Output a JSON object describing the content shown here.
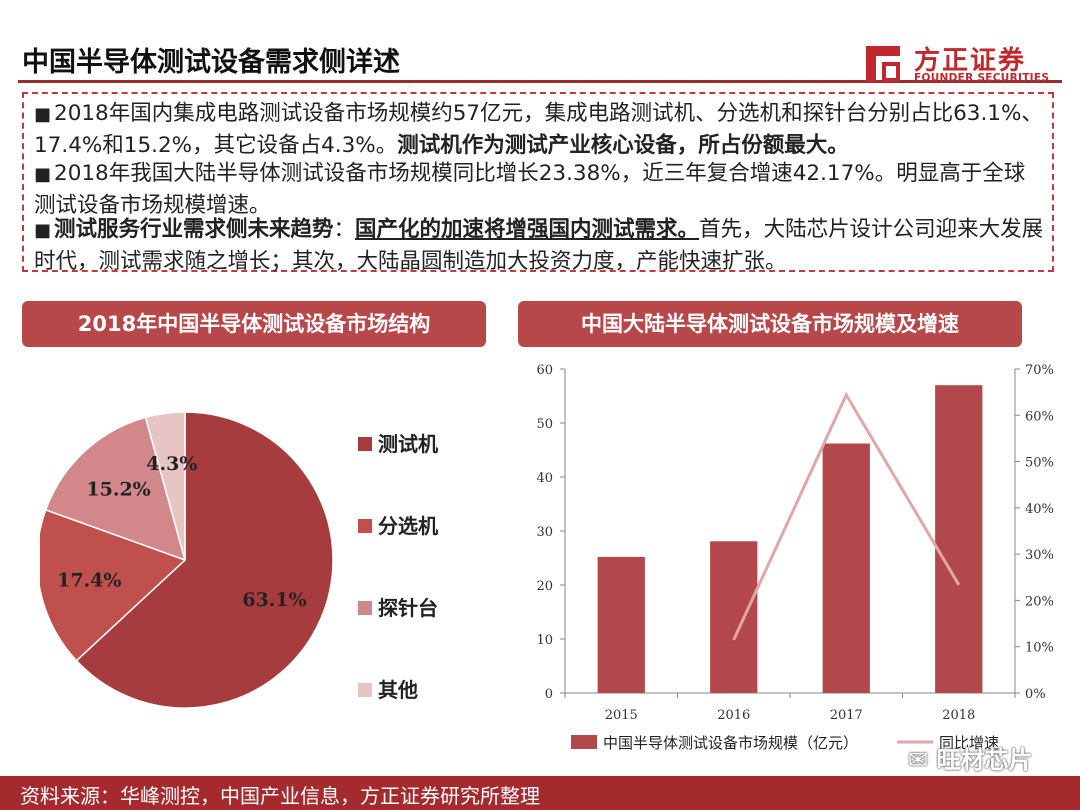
{
  "header": {
    "title": "中国半导体测试设备需求侧详述",
    "logo_name": "方正证券",
    "logo_sub": "FOUNDER SECURITIES"
  },
  "summary": {
    "bullets": [
      {
        "plain": "2018年国内集成电路测试设备市场规模约57亿元，集成电路测试机、分选机和探针台分别占比63.1%、17.4%和15.2%，其它设备占4.3%。",
        "emphasis": "测试机作为测试产业核心设备，所占份额最大。"
      },
      {
        "plain": "2018年我国大陆半导体测试设备市场规模同比增长23.38%，近三年复合增速42.17%。明显高于全球测试设备市场规模增速。"
      },
      {
        "lead": "测试服务行业需求侧未来趋势",
        "sep": "：",
        "emphasis": "国产化的加速将增强国内测试需求。",
        "plain": "首先，大陆芯片设计公司迎来大发展时代，测试需求随之增长；其次，大陆晶圆制造加大投资力度，产能快速扩张。"
      }
    ]
  },
  "panels": {
    "left_title": "2018年中国半导体测试设备市场结构",
    "right_title": "中国大陆半导体测试设备市场规模及增速"
  },
  "chart_data": [
    {
      "type": "pie",
      "title": "2018年中国半导体测试设备市场结构",
      "slices": [
        {
          "label": "测试机",
          "value": 63.1,
          "display": "63.1%",
          "color": "#a63c3e"
        },
        {
          "label": "分选机",
          "value": 17.4,
          "display": "17.4%",
          "color": "#c0504d"
        },
        {
          "label": "探针台",
          "value": 15.2,
          "display": "15.2%",
          "color": "#d2888a"
        },
        {
          "label": "其他",
          "value": 4.3,
          "display": "4.3%",
          "color": "#e8c5c5"
        }
      ],
      "legend_position": "right"
    },
    {
      "type": "bar",
      "title": "中国大陆半导体测试设备市场规模及增速",
      "categories": [
        "2015",
        "2016",
        "2017",
        "2018"
      ],
      "series": [
        {
          "name": "中国半导体测试设备市场规模（亿元）",
          "type": "bar",
          "axis": "left",
          "values": [
            25.2,
            28.1,
            46.2,
            57.0
          ],
          "color": "#b2484b"
        },
        {
          "name": "同比增速",
          "type": "line",
          "axis": "right",
          "values": [
            null,
            11.5,
            64.4,
            23.4
          ],
          "color": "#e0a6a8"
        }
      ],
      "y_left": {
        "min": 0,
        "max": 60,
        "ticks": [
          "0",
          "10",
          "20",
          "30",
          "40",
          "50",
          "60"
        ]
      },
      "y_right": {
        "min": 0,
        "max": 70,
        "ticks": [
          "0%",
          "10%",
          "20%",
          "30%",
          "40%",
          "50%",
          "60%",
          "70%"
        ]
      },
      "legend_position": "bottom",
      "grid": false
    }
  ],
  "footer": {
    "source": "资料来源：华峰测控，中国产业信息，方正证券研究所整理",
    "watermark": "旺材芯片"
  },
  "colors": {
    "accent": "#a52a2e",
    "panel_header": "#b8474a"
  }
}
